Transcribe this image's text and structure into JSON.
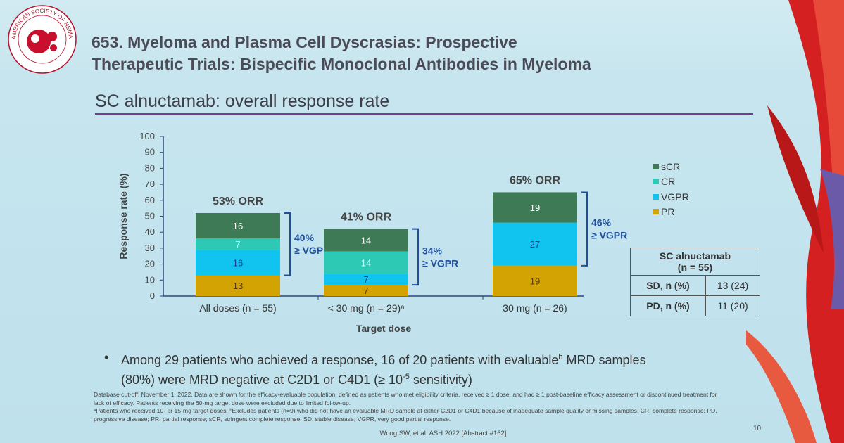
{
  "header": {
    "logo_text": "AMERICAN SOCIETY OF HEMATOLOGY",
    "line1": "653. Myeloma and Plasma Cell Dyscrasias: Prospective",
    "line2": "Therapeutic Trials: Bispecific Monoclonal Antibodies in Myeloma"
  },
  "slide_title": "SC alnuctamab: overall response rate",
  "colors": {
    "sCR": "#3d7a55",
    "CR": "#2ec9b4",
    "VGPR": "#11c3ef",
    "PR": "#d3a303",
    "accent": "#7a3a90",
    "bracket": "#1f4f9a"
  },
  "chart_data": {
    "type": "bar",
    "stacked": true,
    "title": "",
    "xlabel": "Target dose",
    "ylabel": "Response rate (%)",
    "ylim": [
      0,
      100
    ],
    "yticks": [
      "0",
      "10",
      "20",
      "30",
      "40",
      "50",
      "60",
      "70",
      "80",
      "90",
      "100"
    ],
    "categories": [
      "All doses (n = 55)",
      "< 30 mg (n = 29)ᵃ",
      "30 mg (n = 26)"
    ],
    "series": [
      {
        "name": "PR",
        "values": [
          13,
          7,
          19
        ]
      },
      {
        "name": "VGPR",
        "values": [
          16,
          7,
          27
        ]
      },
      {
        "name": "CR",
        "values": [
          7,
          14,
          0
        ]
      },
      {
        "name": "sCR",
        "values": [
          16,
          14,
          19
        ]
      }
    ],
    "totals": [
      "53% ORR",
      "41% ORR",
      "65% ORR"
    ],
    "vgpr_annotations": [
      {
        "pct": "40%",
        "label": "≥ VGPR"
      },
      {
        "pct": "34%",
        "label": "≥ VGPR"
      },
      {
        "pct": "46%",
        "label": "≥ VGPR"
      }
    ],
    "legend": [
      "sCR",
      "CR",
      "VGPR",
      "PR"
    ],
    "legend_position": "right"
  },
  "sd_table": {
    "header1": "SC alnuctamab",
    "header2": "(n = 55)",
    "rows": [
      {
        "label": "SD, n (%)",
        "value": "13 (24)"
      },
      {
        "label": "PD, n (%)",
        "value": "11 (20)"
      }
    ]
  },
  "bullet": {
    "line1": "Among 29 patients who achieved a response, 16 of 20 patients with evaluable",
    "sup": "b",
    "line1_end": " MRD samples",
    "line2": "(80%) were MRD negative at C2D1 or C4D1 (≥ 10",
    "exp": "-5",
    "line2_end": " sensitivity)"
  },
  "footnote": {
    "p1": "Database cut-off: November 1, 2022. Data are shown for the efficacy-evaluable population, defined as patients who met eligibility criteria, received ≥ 1 dose, and had ≥ 1 post-baseline efficacy assessment or discontinued treatment for lack of efficacy. Patients receiving the 60-mg target dose were excluded due to limited follow-up.",
    "p2": "ᵃPatients who received 10- or 15-mg target doses. ᵇExcludes patients (n=9) who did not have an evaluable MRD sample at either C2D1 or C4D1 because of inadequate sample quality or missing samples. CR, complete response; PD, progressive disease; PR, partial response; sCR, stringent complete response; SD, stable disease; VGPR, very good partial response."
  },
  "citation": "Wong SW, et al. ASH 2022 [Abstract #162]",
  "page_number": "10"
}
